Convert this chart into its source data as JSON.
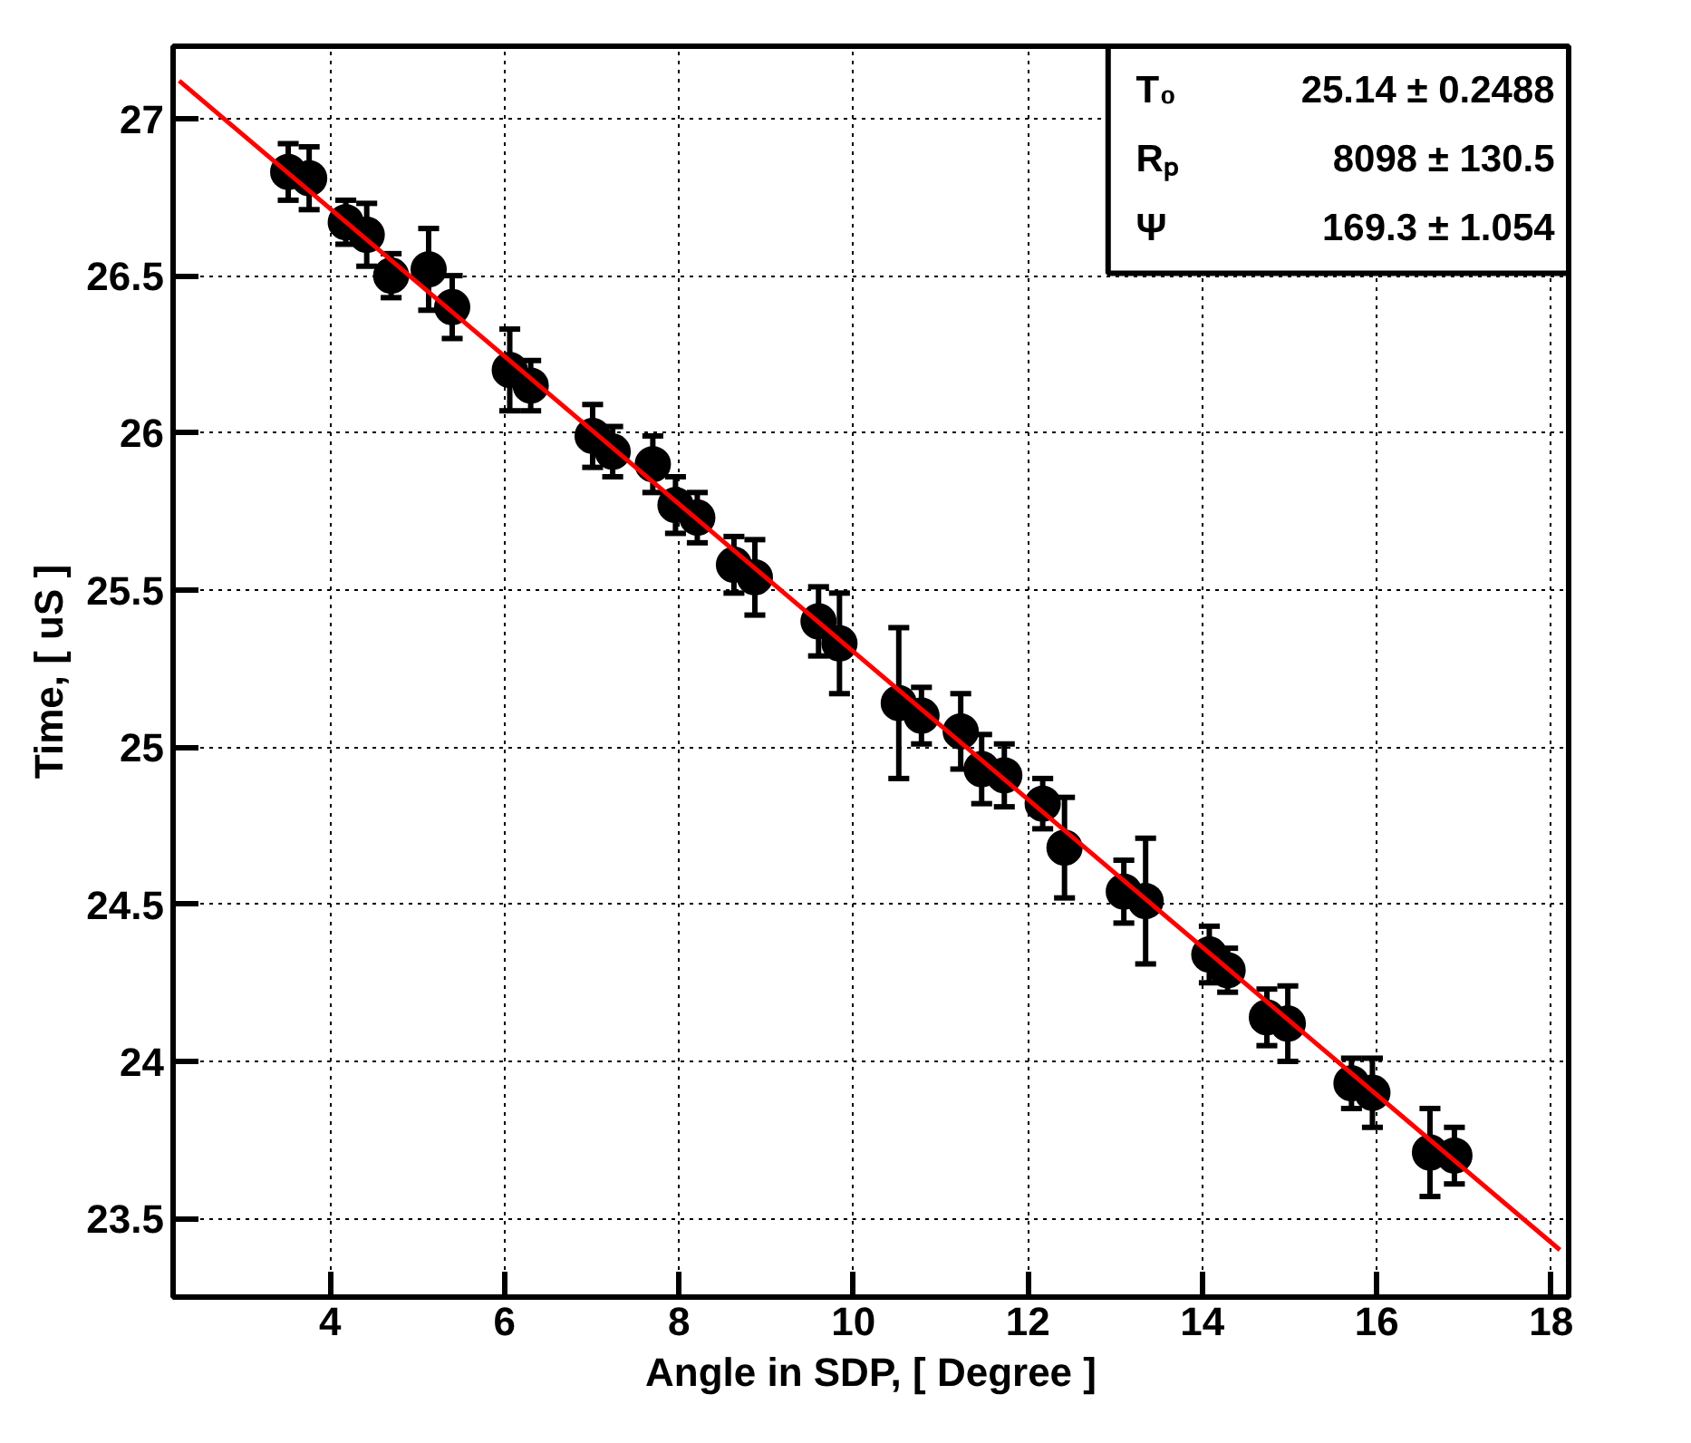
{
  "chart_data": {
    "type": "scatter",
    "xlabel": "Angle in SDP, [ Degree ]",
    "ylabel": "Time, [ uS ]",
    "xlim": [
      2.2,
      18.2
    ],
    "ylim": [
      23.25,
      27.23
    ],
    "xticks": [
      4,
      6,
      8,
      10,
      12,
      14,
      16,
      18
    ],
    "yticks": [
      23.5,
      24,
      24.5,
      25,
      25.5,
      26,
      26.5,
      27
    ],
    "grid": true,
    "marker": "circle",
    "series": [
      {
        "color": "#000000",
        "x": [
          3.52,
          3.76,
          4.18,
          4.42,
          4.7,
          5.13,
          5.4,
          6.06,
          6.3,
          7.01,
          7.24,
          7.7,
          7.96,
          8.21,
          8.63,
          8.87,
          9.6,
          9.84,
          10.52,
          10.78,
          11.23,
          11.47,
          11.73,
          12.17,
          12.42,
          13.1,
          13.35,
          14.08,
          14.29,
          14.74,
          14.98,
          15.71,
          15.95,
          16.61,
          16.89
        ],
        "values": [
          26.83,
          26.81,
          26.67,
          26.63,
          26.5,
          26.52,
          26.4,
          26.2,
          26.15,
          25.99,
          25.94,
          25.9,
          25.77,
          25.73,
          25.58,
          25.54,
          25.4,
          25.33,
          25.14,
          25.1,
          25.05,
          24.93,
          24.91,
          24.82,
          24.68,
          24.54,
          24.51,
          24.34,
          24.29,
          24.14,
          24.12,
          23.93,
          23.9,
          23.71,
          23.7
        ],
        "errors": [
          0.09,
          0.1,
          0.07,
          0.1,
          0.07,
          0.13,
          0.1,
          0.13,
          0.08,
          0.1,
          0.08,
          0.09,
          0.09,
          0.08,
          0.09,
          0.12,
          0.11,
          0.16,
          0.24,
          0.09,
          0.12,
          0.11,
          0.1,
          0.08,
          0.16,
          0.1,
          0.2,
          0.09,
          0.07,
          0.09,
          0.12,
          0.08,
          0.11,
          0.14,
          0.09
        ]
      },
      {
        "type": "line",
        "color": "#ff0000",
        "marker": "none",
        "line_style": "solid",
        "x": [
          2.27,
          18.1
        ],
        "values": [
          27.12,
          23.4
        ]
      }
    ],
    "annotations": [
      "T₀",
      "25.14 ± 0.2488",
      "Rₚ",
      "8098 ± 130.5",
      "Ψ",
      "169.3 ± 1.054"
    ]
  }
}
